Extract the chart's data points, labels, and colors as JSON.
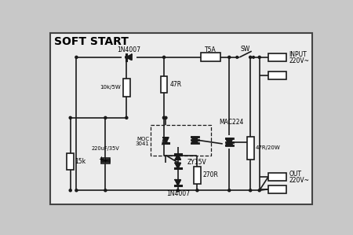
{
  "title": "SOFT START",
  "bg_color": "#ececec",
  "border_color": "#444444",
  "line_color": "#1a1a1a",
  "component_color": "#1a1a1a",
  "fig_bg": "#c8c8c8",
  "labels": {
    "1N4007_top": "1N4007",
    "1N4007_bot": "1N4007",
    "10k5W": "10k/5W",
    "47R": "47R",
    "T5A": "T5A",
    "SW": "SW",
    "INPUT": "INPUT",
    "INPUT2": "220V~",
    "OUTPUT": "OUT",
    "OUTPUT2": "220V~",
    "MOC3041a": "MOC",
    "MOC3041b": "3041",
    "MAC224": "MAC224",
    "220uF": "220uF/35V",
    "ZY15V": "ZY15V",
    "270R": "270R",
    "47R20W": "47R/20W",
    "15k": "15k",
    "plus": "+"
  }
}
